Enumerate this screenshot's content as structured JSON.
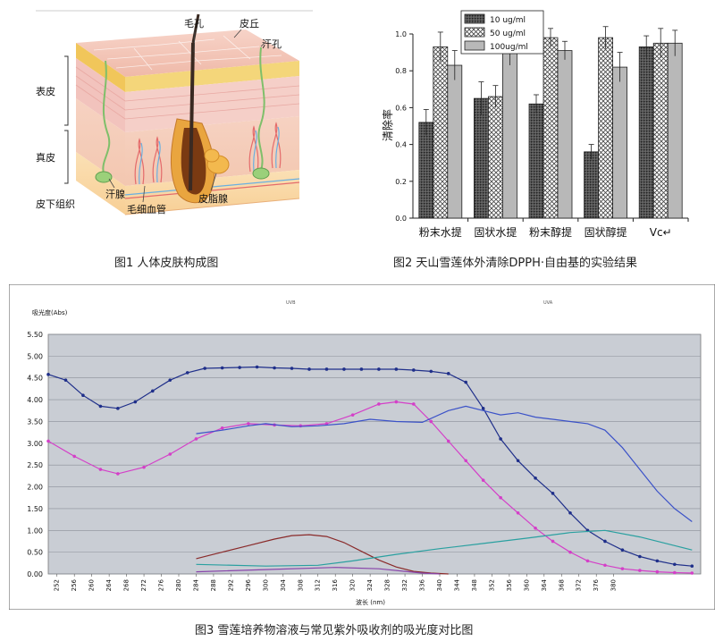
{
  "figure1": {
    "caption": "图1  人体皮肤构成图",
    "labels": {
      "hair": "毛孔",
      "papilla": "皮丘",
      "sweat_pore": "汗孔",
      "epidermis": "表皮",
      "dermis": "真皮",
      "subcutis": "皮下组织",
      "sweat_gland": "汗腺",
      "capillary": "毛细血管",
      "sebaceous": "皮脂腺"
    }
  },
  "figure2": {
    "caption": "图2  天山雪莲体外清除DPPH·自由基的实验结果",
    "chart_data": {
      "type": "bar",
      "ylabel": "清除率",
      "xlabel": "",
      "ylim": [
        0,
        1.0
      ],
      "yticks": [
        "0.0",
        "0.2",
        "0.4",
        "0.6",
        "0.8",
        "1.0"
      ],
      "categories": [
        "粉末水提",
        "固状水提",
        "粉末醇提",
        "固状醇提",
        "Vc↵"
      ],
      "series": [
        {
          "name": "10 ug/ml",
          "values": [
            0.52,
            0.65,
            0.62,
            0.36,
            0.93
          ],
          "errors": [
            0.07,
            0.09,
            0.05,
            0.04,
            0.06
          ],
          "pattern": "dots"
        },
        {
          "name": "50 ug/ml",
          "values": [
            0.93,
            0.66,
            0.98,
            0.98,
            0.95
          ],
          "errors": [
            0.08,
            0.06,
            0.05,
            0.06,
            0.08
          ],
          "pattern": "cross"
        },
        {
          "name": "100ug/ml",
          "values": [
            0.83,
            0.9,
            0.91,
            0.82,
            0.95
          ],
          "errors": [
            0.08,
            0.07,
            0.05,
            0.08,
            0.07
          ],
          "pattern": "gray"
        }
      ],
      "legend_position": "top-left"
    }
  },
  "figure3": {
    "caption": "图3  雪莲培养物溶液与常见紫外吸收剂的吸光度对比图",
    "chart_data": {
      "type": "line",
      "ylabel": "吸光度(Abs)",
      "xlabel": "波长 (nm)",
      "ylim": [
        0,
        5.5
      ],
      "xlim": [
        250,
        400
      ],
      "yticks": [
        "0.00",
        "0.50",
        "1.00",
        "1.50",
        "2.00",
        "2.50",
        "3.00",
        "3.50",
        "4.00",
        "4.50",
        "5.00",
        "5.50"
      ],
      "xticks": [
        "252",
        "256",
        "260",
        "264",
        "268",
        "272",
        "276",
        "280",
        "284",
        "288",
        "292",
        "296",
        "300",
        "304",
        "308",
        "312",
        "316",
        "320",
        "324",
        "328",
        "332",
        "336",
        "340",
        "344",
        "348",
        "352",
        "356",
        "360",
        "364",
        "368",
        "372",
        "376",
        "380"
      ],
      "band_labels": {
        "uvb": "UVB",
        "uva": "UVA"
      },
      "inline_labels": [
        "",
        "",
        "",
        "",
        "",
        "",
        ""
      ],
      "series": [
        {
          "color": "#1f2f8a",
          "marker": true,
          "x": [
            250,
            254,
            258,
            262,
            266,
            270,
            274,
            278,
            282,
            286,
            290,
            294,
            298,
            302,
            306,
            310,
            314,
            318,
            322,
            326,
            330,
            334,
            338,
            342,
            346,
            350,
            354,
            358,
            362,
            366,
            370,
            374,
            378,
            382,
            386,
            390,
            394,
            398
          ],
          "y": [
            4.58,
            4.45,
            4.1,
            3.85,
            3.8,
            3.95,
            4.2,
            4.45,
            4.62,
            4.72,
            4.73,
            4.74,
            4.75,
            4.73,
            4.72,
            4.7,
            4.7,
            4.7,
            4.7,
            4.7,
            4.7,
            4.68,
            4.65,
            4.6,
            4.4,
            3.8,
            3.1,
            2.6,
            2.2,
            1.85,
            1.4,
            1.0,
            0.75,
            0.55,
            0.4,
            0.3,
            0.22,
            0.18
          ]
        },
        {
          "color": "#d43fc8",
          "marker": true,
          "x": [
            250,
            256,
            262,
            266,
            272,
            278,
            284,
            290,
            296,
            302,
            308,
            314,
            320,
            326,
            330,
            334,
            338,
            342,
            346,
            350,
            354,
            358,
            362,
            366,
            370,
            374,
            378,
            382,
            386,
            390,
            394,
            398
          ],
          "y": [
            3.05,
            2.7,
            2.4,
            2.3,
            2.45,
            2.75,
            3.1,
            3.35,
            3.45,
            3.42,
            3.4,
            3.45,
            3.65,
            3.9,
            3.95,
            3.9,
            3.5,
            3.05,
            2.6,
            2.15,
            1.75,
            1.4,
            1.05,
            0.75,
            0.5,
            0.3,
            0.2,
            0.12,
            0.08,
            0.05,
            0.03,
            0.02
          ]
        },
        {
          "color": "#3b52c8",
          "marker": false,
          "x": [
            284,
            290,
            296,
            300,
            306,
            312,
            318,
            324,
            330,
            336,
            342,
            346,
            350,
            354,
            358,
            362,
            366,
            370,
            374,
            378,
            382,
            386,
            390,
            394,
            398
          ],
          "y": [
            3.22,
            3.3,
            3.4,
            3.45,
            3.38,
            3.4,
            3.45,
            3.55,
            3.5,
            3.48,
            3.75,
            3.85,
            3.75,
            3.65,
            3.7,
            3.6,
            3.55,
            3.5,
            3.45,
            3.3,
            2.9,
            2.4,
            1.9,
            1.5,
            1.2
          ]
        },
        {
          "color": "#8a2a2a",
          "marker": false,
          "x": [
            284,
            290,
            296,
            302,
            306,
            310,
            314,
            318,
            322,
            326,
            330,
            334,
            338,
            342
          ],
          "y": [
            0.35,
            0.5,
            0.65,
            0.8,
            0.88,
            0.9,
            0.86,
            0.72,
            0.52,
            0.32,
            0.16,
            0.06,
            0.02,
            0.0
          ]
        },
        {
          "color": "#2aa0a0",
          "marker": false,
          "x": [
            284,
            300,
            312,
            320,
            330,
            340,
            350,
            360,
            370,
            378,
            386,
            394,
            398
          ],
          "y": [
            0.22,
            0.18,
            0.2,
            0.3,
            0.45,
            0.58,
            0.7,
            0.82,
            0.95,
            1.0,
            0.85,
            0.65,
            0.55
          ]
        },
        {
          "color": "#8844aa",
          "marker": false,
          "x": [
            284,
            300,
            316,
            326,
            332,
            336,
            340
          ],
          "y": [
            0.05,
            0.1,
            0.15,
            0.12,
            0.06,
            0.02,
            0.0
          ]
        }
      ]
    }
  }
}
